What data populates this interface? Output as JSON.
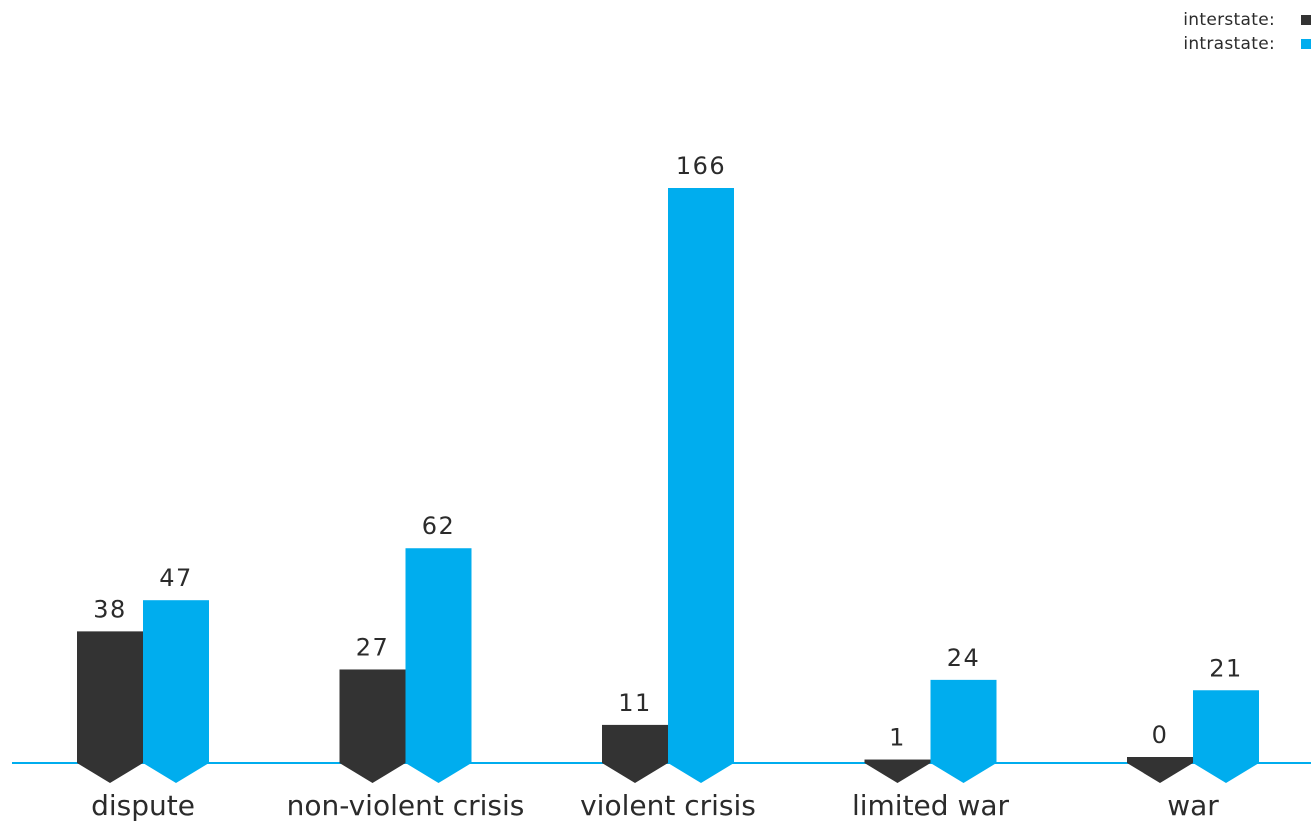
{
  "legend": {
    "items": [
      {
        "label": "interstate:",
        "color": "#333333"
      },
      {
        "label": "intrastate:",
        "color": "#00adee"
      }
    ]
  },
  "colors": {
    "interstate": "#333333",
    "intrastate": "#00adee",
    "baseline": "#00adee"
  },
  "chart_data": {
    "type": "bar",
    "categories": [
      "dispute",
      "non-violent crisis",
      "violent crisis",
      "limited war",
      "war"
    ],
    "series": [
      {
        "name": "interstate:",
        "values": [
          38,
          27,
          11,
          1,
          0
        ]
      },
      {
        "name": "intrastate:",
        "values": [
          47,
          62,
          166,
          24,
          21
        ]
      }
    ],
    "ylim": [
      0,
      166
    ],
    "grid": false,
    "legend_position": "top-right"
  }
}
